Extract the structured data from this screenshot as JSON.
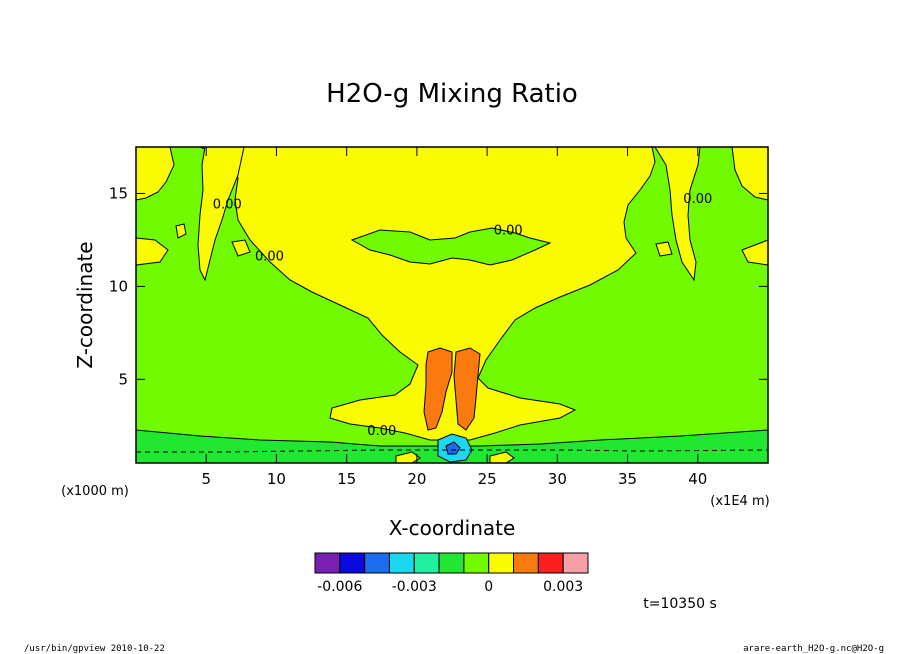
{
  "chart_data": {
    "type": "heatmap",
    "title": "H2O-g Mixing Ratio",
    "xlabel": "X-coordinate",
    "ylabel": "Z-coordinate",
    "x_unit_label": "(x1E4 m)",
    "y_unit_label": "(x1000 m)",
    "xlim": [
      0,
      45
    ],
    "ylim": [
      0.5,
      17.5
    ],
    "x_ticks": [
      5,
      10,
      15,
      20,
      25,
      30,
      35,
      40
    ],
    "y_ticks": [
      5,
      10,
      15
    ],
    "x_tick_labels": [
      "5",
      "10",
      "15",
      "20",
      "25",
      "30",
      "35",
      "40"
    ],
    "y_tick_labels": [
      "5",
      "10",
      "15"
    ],
    "contour_labels": [
      {
        "text": "0.00",
        "x": 6.5,
        "z": 14.2
      },
      {
        "text": "0.00",
        "x": 9.5,
        "z": 11.4
      },
      {
        "text": "0.00",
        "x": 26.5,
        "z": 12.8
      },
      {
        "text": "0.00",
        "x": 40.0,
        "z": 14.5
      },
      {
        "text": "0.00",
        "x": 17.5,
        "z": 2.0
      }
    ],
    "colorbar": {
      "colors": [
        "#7a1fb6",
        "#0a0ae0",
        "#1a6cf0",
        "#19d8f0",
        "#20f0a0",
        "#21e632",
        "#72fa00",
        "#fafa00",
        "#fa7a10",
        "#fa2020",
        "#f8a0a8"
      ],
      "tick_labels": [
        "-0.006",
        "-0.003",
        "0",
        "0.003"
      ]
    }
  },
  "time_label": "t=10350 s",
  "footer": {
    "left": "/usr/bin/gpview   2010-10-22",
    "right": "arare-earth_H2O-g.nc@H2O-g"
  }
}
